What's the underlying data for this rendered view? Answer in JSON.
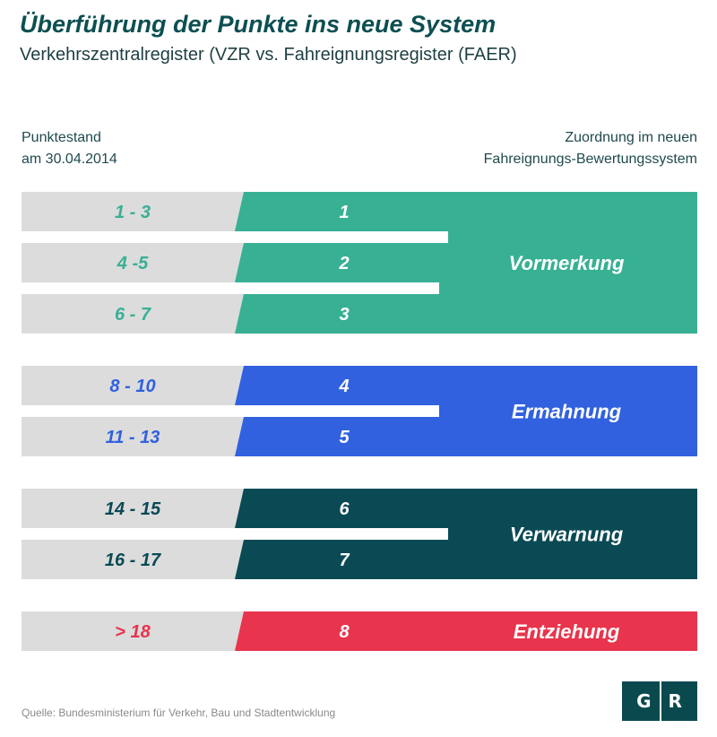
{
  "title": "Überführung der Punkte ins neue System",
  "subtitle": "Verkehrszentralregister (VZR vs. Fahreignungsregister (FAER)",
  "header_left": [
    "Punktestand",
    "am 30.04.2014"
  ],
  "header_right": [
    "Zuordnung im neuen",
    "Fahreignungs-Bewertungssystem"
  ],
  "colors": {
    "teal": "#38b094",
    "blue": "#3161df",
    "dark": "#0a4a55",
    "red": "#e8344c",
    "gray": "#dcdcdc"
  },
  "groups": [
    {
      "label": "Vormerkung",
      "color": "#38b094",
      "rows": [
        {
          "range": "1 - 3",
          "points": "1"
        },
        {
          "range": "4 -5",
          "points": "2"
        },
        {
          "range": "6 - 7",
          "points": "3"
        }
      ]
    },
    {
      "label": "Ermahnung",
      "color": "#3161df",
      "rows": [
        {
          "range": "8 - 10",
          "points": "4"
        },
        {
          "range": "11 - 13",
          "points": "5"
        }
      ]
    },
    {
      "label": "Verwarnung",
      "color": "#0a4a55",
      "rows": [
        {
          "range": "14 - 15",
          "points": "6"
        },
        {
          "range": "16 - 17",
          "points": "7"
        }
      ]
    },
    {
      "label": "Entziehung",
      "color": "#e8344c",
      "rows": [
        {
          "range": "> 18",
          "points": "8"
        }
      ]
    }
  ],
  "source": "Quelle: Bundesministerium für Verkehr, Bau und Stadtentwicklung",
  "logo": {
    "left": "G",
    "right": "R"
  }
}
